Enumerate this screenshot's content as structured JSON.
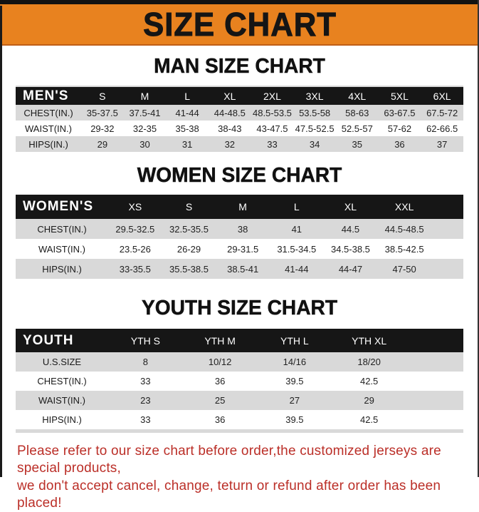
{
  "banner": {
    "title": "SIZE CHART"
  },
  "colors": {
    "banner_orange": "#E8821F",
    "table_header_black": "#161616",
    "row_stripe_gray": "#D9D9D9",
    "note_red": "#BB2F28"
  },
  "sections": [
    {
      "heading": "MAN SIZE CHART",
      "corner_label": "MEN'S",
      "columns": [
        "S",
        "M",
        "L",
        "XL",
        "2XL",
        "3XL",
        "4XL",
        "5XL",
        "6XL"
      ],
      "rows": [
        {
          "label": "CHEST(IN.)",
          "values": [
            "35-37.5",
            "37.5-41",
            "41-44",
            "44-48.5",
            "48.5-53.5",
            "53.5-58",
            "58-63",
            "63-67.5",
            "67.5-72"
          ]
        },
        {
          "label": "WAIST(IN.)",
          "values": [
            "29-32",
            "32-35",
            "35-38",
            "38-43",
            "43-47.5",
            "47.5-52.5",
            "52.5-57",
            "57-62",
            "62-66.5"
          ]
        },
        {
          "label": "HIPS(IN.)",
          "values": [
            "29",
            "30",
            "31",
            "32",
            "33",
            "34",
            "35",
            "36",
            "37"
          ]
        }
      ]
    },
    {
      "heading": "WOMEN SIZE CHART",
      "corner_label": "WOMEN'S",
      "columns": [
        "XS",
        "S",
        "M",
        "L",
        "XL",
        "XXL"
      ],
      "rows": [
        {
          "label": "CHEST(IN.)",
          "values": [
            "29.5-32.5",
            "32.5-35.5",
            "38",
            "41",
            "44.5",
            "44.5-48.5"
          ]
        },
        {
          "label": "WAIST(IN.)",
          "values": [
            "23.5-26",
            "26-29",
            "29-31.5",
            "31.5-34.5",
            "34.5-38.5",
            "38.5-42.5"
          ]
        },
        {
          "label": "HIPS(IN.)",
          "values": [
            "33-35.5",
            "35.5-38.5",
            "38.5-41",
            "41-44",
            "44-47",
            "47-50"
          ]
        }
      ]
    },
    {
      "heading": "YOUTH SIZE CHART",
      "corner_label": "YOUTH",
      "columns": [
        "YTH S",
        "YTH M",
        "YTH L",
        "YTH XL"
      ],
      "rows": [
        {
          "label": "U.S.SIZE",
          "values": [
            "8",
            "10/12",
            "14/16",
            "18/20"
          ]
        },
        {
          "label": "CHEST(IN.)",
          "values": [
            "33",
            "36",
            "39.5",
            "42.5"
          ]
        },
        {
          "label": "WAIST(IN.)",
          "values": [
            "23",
            "25",
            "27",
            "29"
          ]
        },
        {
          "label": "HIPS(IN.)",
          "values": [
            "33",
            "36",
            "39.5",
            "42.5"
          ]
        }
      ]
    }
  ],
  "note": {
    "line1": "Please refer to our size chart before order,the customized jerseys are special products,",
    "line2": "we don't accept cancel, change, teturn or refund after order has been placed!"
  }
}
